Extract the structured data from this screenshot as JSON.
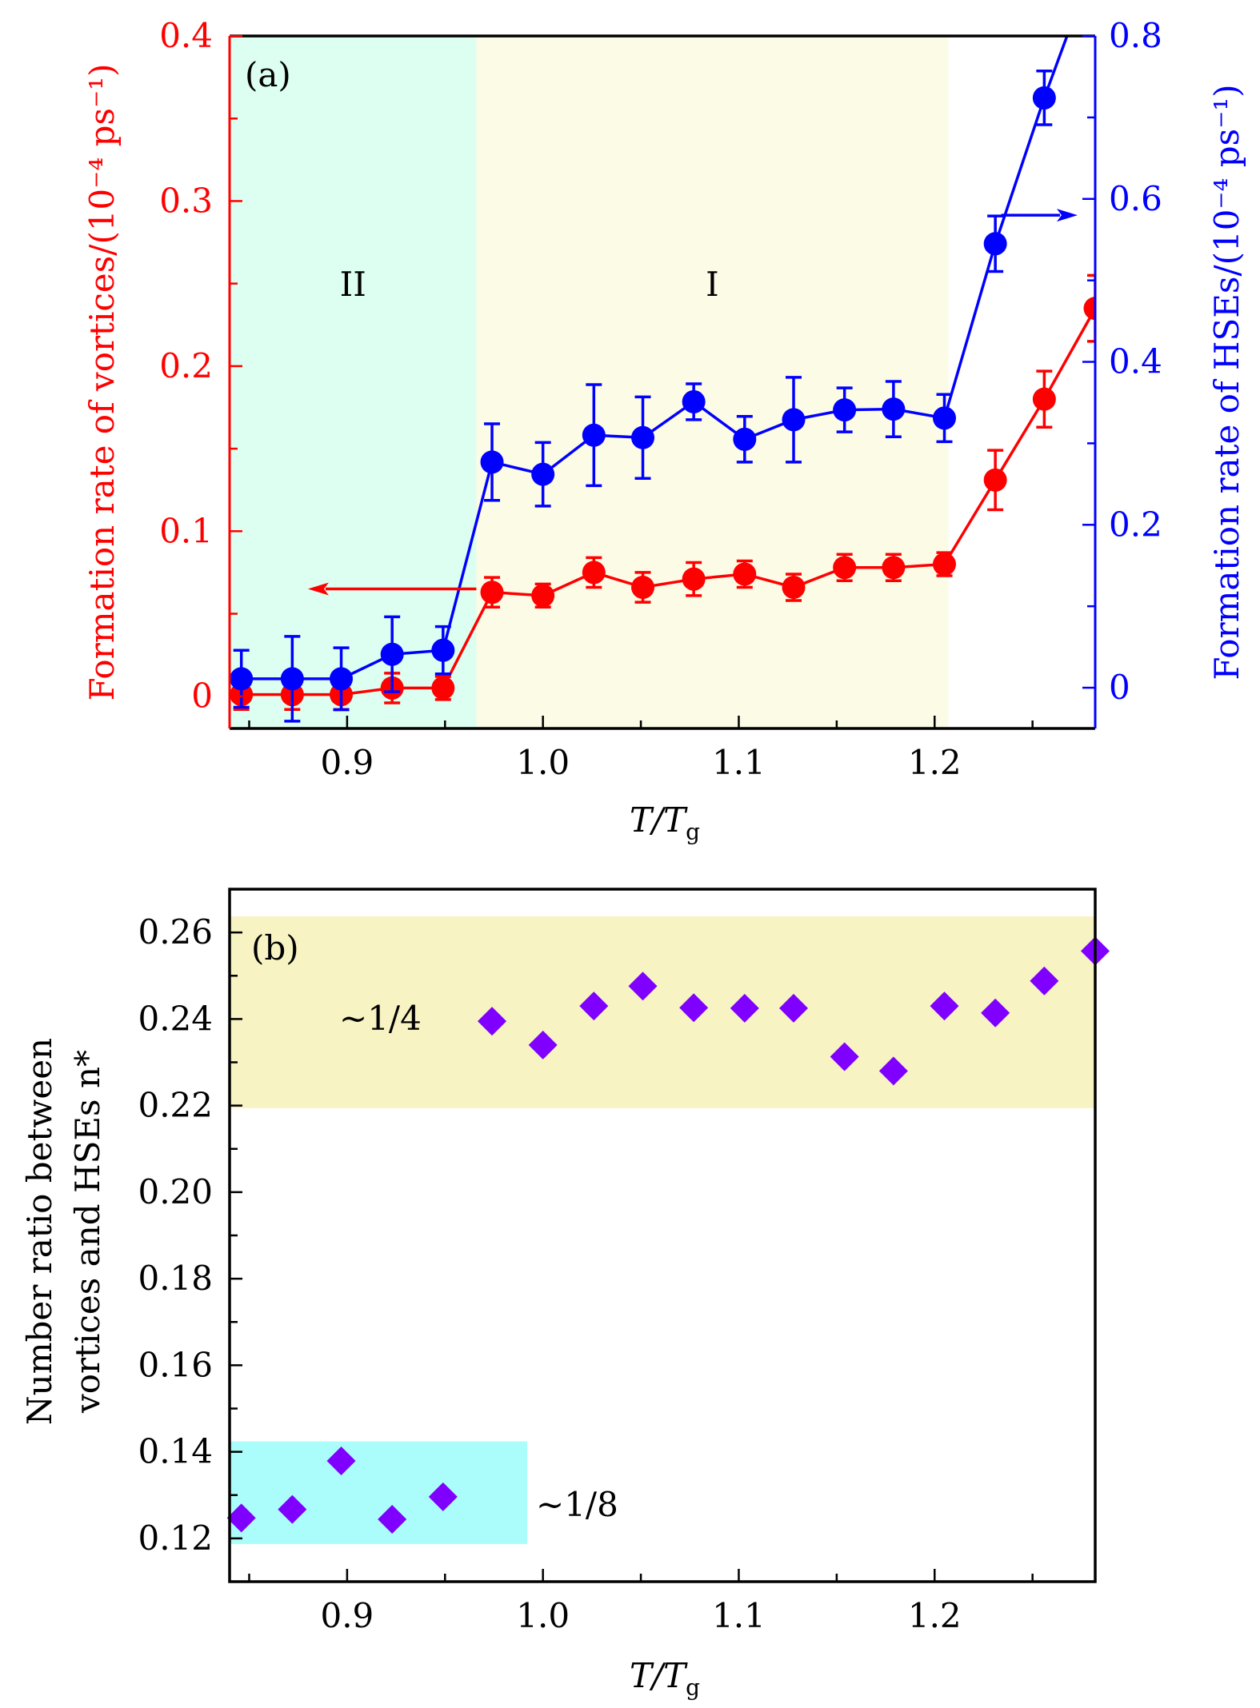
{
  "chart_data": [
    {
      "panel": "a",
      "type": "line",
      "panel_label": "(a)",
      "xlabel": "T/Tg",
      "xlim": [
        0.84,
        1.282
      ],
      "xticks": [
        0.9,
        1.0,
        1.1,
        1.2
      ],
      "xtick_labels": [
        "0.9",
        "1.0",
        "1.1",
        "1.2"
      ],
      "ylabel_left": "Formation rate of vortices/(10⁻⁴ ps⁻¹)",
      "ylim_left": [
        -0.0195,
        0.4
      ],
      "yticks_left": [
        0,
        0.1,
        0.2,
        0.3,
        0.4
      ],
      "ytick_labels_left": [
        "0",
        "0.1",
        "0.2",
        "0.3",
        "0.4"
      ],
      "ylabel_right": "Formation rate of HSEs/(10⁻⁴ ps⁻¹)",
      "ylim_right": [
        -0.05,
        0.8
      ],
      "yticks_right": [
        0,
        0.2,
        0.4,
        0.6,
        0.8
      ],
      "ytick_labels_right": [
        "0",
        "0.2",
        "0.4",
        "0.6",
        "0.8"
      ],
      "grid": false,
      "regions": [
        {
          "label": "II",
          "x0": 0.84,
          "x1": 0.966,
          "color": "#dcfff1"
        },
        {
          "label": "I",
          "x0": 0.966,
          "x1": 1.207,
          "color": "#fcfbe6"
        }
      ],
      "x": [
        0.846,
        0.872,
        0.897,
        0.923,
        0.949,
        0.974,
        1.0,
        1.026,
        1.051,
        1.077,
        1.103,
        1.128,
        1.154,
        1.179,
        1.205,
        1.231,
        1.256,
        1.282
      ],
      "series": [
        {
          "name": "vortices",
          "axis": "left",
          "color": "#ff0000",
          "values": [
            0.001,
            0.001,
            0.001,
            0.005,
            0.005,
            0.063,
            0.061,
            0.075,
            0.066,
            0.071,
            0.074,
            0.066,
            0.078,
            0.078,
            0.08,
            0.131,
            0.18,
            0.235
          ],
          "err_low": [
            0.009,
            0.009,
            0.009,
            0.009,
            0.007,
            0.009,
            0.007,
            0.009,
            0.009,
            0.01,
            0.008,
            0.008,
            0.008,
            0.008,
            0.007,
            0.018,
            0.017,
            0.02
          ],
          "err_high": [
            0.009,
            0.009,
            0.009,
            0.009,
            0.007,
            0.009,
            0.007,
            0.009,
            0.009,
            0.01,
            0.008,
            0.008,
            0.008,
            0.008,
            0.007,
            0.018,
            0.017,
            0.02
          ]
        },
        {
          "name": "HSEs",
          "axis": "right",
          "color": "#0000ff",
          "values": [
            0.011,
            0.011,
            0.011,
            0.041,
            0.046,
            0.277,
            0.262,
            0.31,
            0.307,
            0.351,
            0.305,
            0.329,
            0.341,
            0.342,
            0.331,
            0.545,
            0.724,
            0.894
          ],
          "err_low": [
            0.035,
            0.052,
            0.038,
            0.046,
            0.029,
            0.047,
            0.039,
            0.062,
            0.05,
            0.022,
            0.028,
            0.052,
            0.027,
            0.034,
            0.029,
            0.034,
            0.033,
            0.03
          ],
          "err_high": [
            0.035,
            0.052,
            0.038,
            0.046,
            0.029,
            0.047,
            0.039,
            0.062,
            0.05,
            0.022,
            0.028,
            0.052,
            0.027,
            0.034,
            0.029,
            0.034,
            0.033,
            0.03
          ]
        }
      ],
      "annotations": [
        {
          "type": "arrow",
          "series": "vortices",
          "direction": "left",
          "axis": "left",
          "y": 0.065,
          "x_from": 0.966,
          "x_to": 0.88
        },
        {
          "type": "arrow",
          "series": "HSEs",
          "direction": "right",
          "axis": "right",
          "y": 0.58,
          "x_from": 1.234,
          "x_to": 1.273
        }
      ]
    },
    {
      "panel": "b",
      "type": "scatter",
      "panel_label": "(b)",
      "xlabel": "T/Tg",
      "xlim": [
        0.84,
        1.282
      ],
      "xticks": [
        0.9,
        1.0,
        1.1,
        1.2
      ],
      "xtick_labels": [
        "0.9",
        "1.0",
        "1.1",
        "1.2"
      ],
      "ylabel_line1": "Number ratio between",
      "ylabel_line2": "vortices and HSEs n*",
      "ylim": [
        0.11,
        0.27
      ],
      "yticks": [
        0.12,
        0.14,
        0.16,
        0.18,
        0.2,
        0.22,
        0.24,
        0.26
      ],
      "ytick_labels": [
        "0.12",
        "0.14",
        "0.16",
        "0.18",
        "0.20",
        "0.22",
        "0.24",
        "0.26"
      ],
      "grid": false,
      "bands": [
        {
          "label": "~1/4",
          "x0": 0.84,
          "x1": 1.282,
          "y0": 0.2194,
          "y1": 0.2637,
          "color": "#f7f3c3"
        },
        {
          "label": "~1/8",
          "x0": 0.84,
          "x1": 0.992,
          "y0": 0.1187,
          "y1": 0.1424,
          "color": "#abfdfb"
        }
      ],
      "marker": "diamond",
      "color": "#7f00ff",
      "x": [
        0.846,
        0.872,
        0.897,
        0.923,
        0.949,
        0.974,
        1.0,
        1.026,
        1.051,
        1.077,
        1.103,
        1.128,
        1.154,
        1.179,
        1.205,
        1.231,
        1.256,
        1.282
      ],
      "values": [
        0.1247,
        0.1267,
        0.1379,
        0.1244,
        0.1296,
        0.2395,
        0.234,
        0.243,
        0.2476,
        0.2426,
        0.2425,
        0.2425,
        0.2313,
        0.228,
        0.243,
        0.2414,
        0.2488,
        0.2557
      ]
    }
  ]
}
